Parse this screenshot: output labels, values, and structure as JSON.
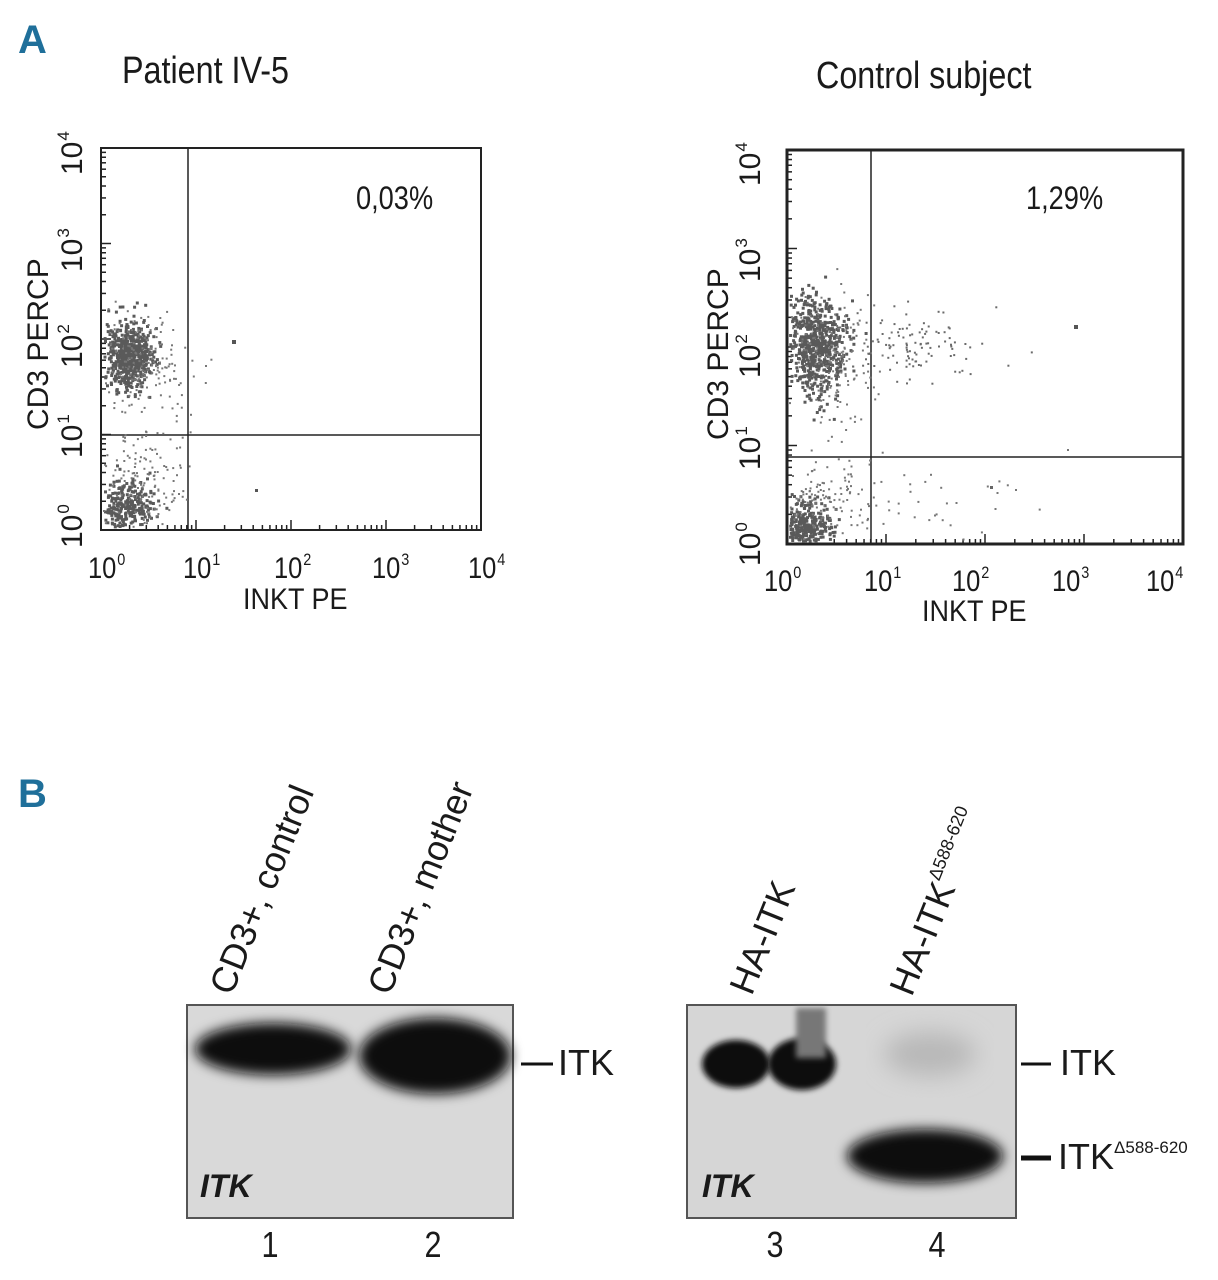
{
  "panel_a": {
    "letter": "A",
    "plots": [
      {
        "title": "Patient IV-5",
        "percentage": "0,03%",
        "xlabel": "INKT PE",
        "ylabel": "CD3 PERCP",
        "x_tick_bases": [
          "10",
          "10",
          "10",
          "10",
          "10"
        ],
        "x_tick_exps": [
          "0",
          "1",
          "2",
          "3",
          "4"
        ],
        "y_tick_bases": [
          "10",
          "10",
          "10",
          "10",
          "10"
        ],
        "y_tick_exps": [
          "0",
          "1",
          "2",
          "3",
          "4"
        ]
      },
      {
        "title": "Control subject",
        "percentage": "1,29%",
        "xlabel": "INKT PE",
        "ylabel": "CD3 PERCP",
        "x_tick_bases": [
          "10",
          "10",
          "10",
          "10",
          "10"
        ],
        "x_tick_exps": [
          "0",
          "1",
          "2",
          "3",
          "4"
        ],
        "y_tick_bases": [
          "10",
          "10",
          "10",
          "10",
          "10"
        ],
        "y_tick_exps": [
          "0",
          "1",
          "2",
          "3",
          "4"
        ]
      }
    ]
  },
  "panel_b": {
    "letter": "B",
    "blot_left": {
      "lanes": [
        "CD3+, control",
        "CD3+, mother"
      ],
      "lane_numbers": [
        "1",
        "2"
      ],
      "band_label": "ITK",
      "blot_mark": "ITK"
    },
    "blot_right": {
      "lanes": [
        "HA-ITK",
        "HA-ITK"
      ],
      "lane2_superscript": "Δ588-620",
      "lane_numbers": [
        "3",
        "4"
      ],
      "band_label_top": "ITK",
      "band_label_bottom": "ITK",
      "band_label_bottom_sup": "Δ588-620",
      "blot_mark": "ITK"
    }
  }
}
